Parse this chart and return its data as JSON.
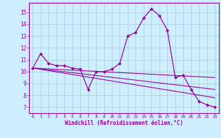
{
  "xlabel": "Windchill (Refroidissement éolien,°C)",
  "bg_color": "#cceeff",
  "line_color": "#990099",
  "marker_color": "#990099",
  "grid_color": "#aacccc",
  "axis_color": "#990099",
  "tick_color": "#990099",
  "x_ticks": [
    0,
    1,
    2,
    3,
    4,
    5,
    6,
    7,
    8,
    9,
    10,
    11,
    12,
    13,
    14,
    15,
    16,
    17,
    18,
    19,
    20,
    21,
    22,
    23
  ],
  "y_ticks": [
    7,
    8,
    9,
    10,
    11,
    12,
    13,
    14,
    15
  ],
  "ylim": [
    6.5,
    15.8
  ],
  "xlim": [
    -0.5,
    23.5
  ],
  "main_series_x": [
    0,
    1,
    2,
    3,
    4,
    5,
    6,
    7,
    8,
    9,
    10,
    11,
    12,
    13,
    14,
    15,
    16,
    17,
    18,
    19,
    20,
    21,
    22,
    23
  ],
  "main_series_y": [
    10.3,
    11.5,
    10.7,
    10.5,
    10.5,
    10.3,
    10.2,
    8.5,
    10.0,
    10.0,
    10.2,
    10.7,
    13.0,
    13.3,
    14.5,
    15.3,
    14.7,
    13.5,
    9.5,
    9.7,
    8.5,
    7.5,
    7.2,
    7.0
  ],
  "line1_x": [
    0,
    23
  ],
  "line1_y": [
    10.3,
    9.5
  ],
  "line2_x": [
    0,
    23
  ],
  "line2_y": [
    10.3,
    8.5
  ],
  "line3_x": [
    0,
    23
  ],
  "line3_y": [
    10.3,
    7.8
  ]
}
